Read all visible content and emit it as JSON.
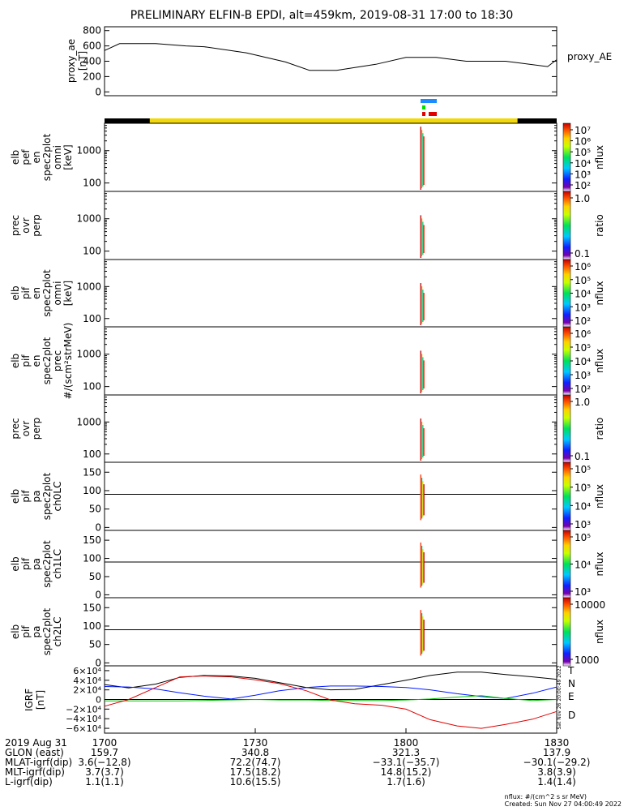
{
  "title": "PRELIMINARY ELFIN-B EPDI, alt=459km, 2019-08-31 17:00 to 18:30",
  "colors": {
    "bar_black": "#000000",
    "bar_yellow": "#f2d808",
    "trace_black": "#000000",
    "trace_blue": "#0018ff",
    "trace_green": "#00c800",
    "trace_red": "#e00000",
    "flag_blue": "#1a8cff",
    "flag_green": "#00e000",
    "flag_red": "#e00000"
  },
  "chart_data": [
    {
      "type": "line",
      "name": "proxy_ae",
      "ylabel": "proxy_ae [nT]",
      "legend": "proxy_AE",
      "ylim": [
        -50,
        850
      ],
      "yticks": [
        "800",
        "600",
        "400",
        "200",
        "0"
      ],
      "x": [
        17.0,
        17.05,
        17.17,
        17.27,
        17.33,
        17.47,
        17.6,
        17.68,
        17.77,
        17.9,
        18.0,
        18.1,
        18.2,
        18.33,
        18.47,
        18.5
      ],
      "values": [
        540,
        630,
        630,
        600,
        590,
        510,
        390,
        280,
        280,
        360,
        450,
        450,
        400,
        400,
        330,
        420
      ]
    },
    {
      "type": "heatmap",
      "name": "elb_pef_en_spec2plot_omni",
      "ylabel": "elb pef en spec2plot omni [keV]",
      "yticks": [
        "1000",
        "100"
      ],
      "colorbar_label": "nflux",
      "colorbar_ticks": [
        "10⁷",
        "10⁶",
        "10⁵",
        "10⁴",
        "10³",
        "10²"
      ],
      "burst_time": "18:03"
    },
    {
      "type": "heatmap",
      "name": "prec_ovr_perp",
      "ylabel": "prec ovr perp",
      "yticks": [
        "1000",
        "100"
      ],
      "colorbar_label": "ratio",
      "colorbar_ticks": [
        "1.0",
        "0.1"
      ]
    },
    {
      "type": "heatmap",
      "name": "elb_pif_en_spec2plot_omni",
      "ylabel": "elb pif en spec2plot omni [keV]",
      "yticks": [
        "1000",
        "100"
      ],
      "colorbar_label": "nflux",
      "colorbar_ticks": [
        "10⁶",
        "10⁵",
        "10⁴",
        "10³",
        "10²"
      ]
    },
    {
      "type": "heatmap",
      "name": "elb_pif_en_spec2plot_prec",
      "ylabel": "elb pif en spec2plot prec #/(scm²strMeV)",
      "yticks": [
        "1000",
        "100"
      ],
      "colorbar_label": "nflux",
      "colorbar_ticks": [
        "10⁶",
        "10⁵",
        "10⁴",
        "10³",
        "10²"
      ]
    },
    {
      "type": "heatmap",
      "name": "prec_ovr_perp_2",
      "ylabel": "prec ovr perp",
      "yticks": [
        "1000",
        "100"
      ],
      "colorbar_label": "ratio",
      "colorbar_ticks": [
        "1.0",
        "0.1"
      ]
    },
    {
      "type": "heatmap",
      "name": "elb_pif_pa_spec2plot_ch0LC",
      "ylabel": "elb pif pa spec2plot ch0LC",
      "yticks": [
        "150",
        "100",
        "50",
        "0"
      ],
      "colorbar_label": "nflux",
      "colorbar_ticks": [
        "10⁵",
        "10⁵",
        "10⁴",
        "10³"
      ]
    },
    {
      "type": "heatmap",
      "name": "elb_pif_pa_spec2plot_ch1LC",
      "ylabel": "elb pif pa spec2plot ch1LC",
      "yticks": [
        "150",
        "100",
        "50",
        "0"
      ],
      "colorbar_label": "nflux",
      "colorbar_ticks": [
        "10⁵",
        "10⁴",
        "10³"
      ]
    },
    {
      "type": "heatmap",
      "name": "elb_pif_pa_spec2plot_ch2LC",
      "ylabel": "elb pif pa spec2plot ch2LC",
      "yticks": [
        "150",
        "100",
        "50",
        "0"
      ],
      "colorbar_label": "nflux",
      "colorbar_ticks": [
        "10000",
        "1000"
      ]
    },
    {
      "type": "line",
      "name": "IGRF",
      "ylabel": "IGRF [nT]",
      "ylim": [
        -70000,
        70000
      ],
      "yticks": [
        "6×10⁴",
        "4×10⁴",
        "2×10⁴",
        "0",
        "−2×10⁴",
        "−4×10⁴",
        "−6×10⁴"
      ],
      "legend": [
        "T",
        "N",
        "E",
        "D"
      ],
      "side_stamp": "Sat Nov 26 20:00:49 2022",
      "x": [
        17.0,
        17.08,
        17.17,
        17.25,
        17.33,
        17.42,
        17.5,
        17.58,
        17.67,
        17.75,
        17.83,
        17.92,
        18.0,
        18.08,
        18.17,
        18.25,
        18.33,
        18.42,
        18.5
      ],
      "series": [
        {
          "name": "T",
          "values": [
            31000,
            24000,
            32000,
            46000,
            50000,
            49000,
            44000,
            35000,
            25000,
            20000,
            21000,
            31000,
            40000,
            50000,
            57000,
            57000,
            52000,
            47000,
            42000
          ]
        },
        {
          "name": "N",
          "values": [
            27000,
            26000,
            22000,
            14000,
            7000,
            1000,
            9000,
            18000,
            25000,
            28000,
            28000,
            27000,
            25000,
            20000,
            12000,
            6000,
            2000,
            13000,
            26000
          ]
        },
        {
          "name": "E",
          "values": [
            -3000,
            -3000,
            -3000,
            -3000,
            -2000,
            -1000,
            0,
            -1000,
            -1000,
            -2000,
            -2000,
            -2000,
            -1000,
            1000,
            5000,
            8000,
            2000,
            -2000,
            0
          ]
        },
        {
          "name": "D",
          "values": [
            -14000,
            0,
            25000,
            47000,
            49000,
            47000,
            41000,
            33000,
            18000,
            -1000,
            -9000,
            -12000,
            -20000,
            -42000,
            -55000,
            -60000,
            -52000,
            -41000,
            -25000
          ]
        }
      ]
    }
  ],
  "xaxis": {
    "row_labels": [
      "2019 Aug 31",
      "GLON (east)",
      "MLAT-igrf(dip)",
      "MLT-igrf(dip)",
      "L-igrf(dip)"
    ],
    "columns": [
      [
        "1700",
        "159.7",
        "3.6(−12.8)",
        "3.7(3.7)",
        "1.1(1.1)"
      ],
      [
        "1730",
        "340.8",
        "72.2(74.7)",
        "17.5(18.2)",
        "10.6(15.5)"
      ],
      [
        "1800",
        "321.3",
        "−33.1(−35.7)",
        "14.8(15.2)",
        "1.7(1.6)"
      ],
      [
        "1830",
        "137.9",
        "−30.1(−29.2)",
        "3.8(3.9)",
        "1.4(1.4)"
      ]
    ]
  },
  "footer": {
    "units": "nflux: #/(cm^2 s sr MeV)",
    "created": "Created: Sun Nov 27 04:00:49 2022"
  }
}
